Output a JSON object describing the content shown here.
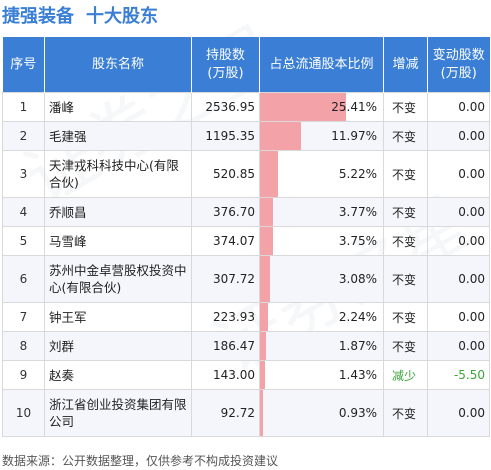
{
  "title": {
    "company": "捷强装备",
    "section": "十大股东"
  },
  "columns": [
    "序号",
    "股东名称",
    "持股数\n(万股)",
    "占总流通股本比例",
    "增减",
    "变动股数\n(万股)"
  ],
  "columns_display": {
    "idx": "序号",
    "name": "股东名称",
    "shares_l1": "持股数",
    "shares_l2": "(万股)",
    "ratio": "占总流通股本比例",
    "change": "增减",
    "delta_l1": "变动股数",
    "delta_l2": "(万股)"
  },
  "rows": [
    {
      "idx": "1",
      "name": "潘峰",
      "shares": "2536.95",
      "pct": "25.41%",
      "pct_value": 25.41,
      "change": "不变",
      "delta": "0.00"
    },
    {
      "idx": "2",
      "name": "毛建强",
      "shares": "1195.35",
      "pct": "11.97%",
      "pct_value": 11.97,
      "change": "不变",
      "delta": "0.00"
    },
    {
      "idx": "3",
      "name": "天津戎科科技中心(有限合伙)",
      "shares": "520.85",
      "pct": "5.22%",
      "pct_value": 5.22,
      "change": "不变",
      "delta": "0.00"
    },
    {
      "idx": "4",
      "name": "乔顺昌",
      "shares": "376.70",
      "pct": "3.77%",
      "pct_value": 3.77,
      "change": "不变",
      "delta": "0.00"
    },
    {
      "idx": "5",
      "name": "马雪峰",
      "shares": "374.07",
      "pct": "3.75%",
      "pct_value": 3.75,
      "change": "不变",
      "delta": "0.00"
    },
    {
      "idx": "6",
      "name": "苏州中金卓营股权投资中心(有限合伙)",
      "shares": "307.72",
      "pct": "3.08%",
      "pct_value": 3.08,
      "change": "不变",
      "delta": "0.00"
    },
    {
      "idx": "7",
      "name": "钟王军",
      "shares": "223.93",
      "pct": "2.24%",
      "pct_value": 2.24,
      "change": "不变",
      "delta": "0.00"
    },
    {
      "idx": "8",
      "name": "刘群",
      "shares": "186.47",
      "pct": "1.87%",
      "pct_value": 1.87,
      "change": "不变",
      "delta": "0.00"
    },
    {
      "idx": "9",
      "name": "赵奏",
      "shares": "143.00",
      "pct": "1.43%",
      "pct_value": 1.43,
      "change": "减少",
      "delta": "-5.50"
    },
    {
      "idx": "10",
      "name": "浙江省创业投资集团有限公司",
      "shares": "92.72",
      "pct": "0.93%",
      "pct_value": 0.93,
      "change": "不变",
      "delta": "0.00"
    }
  ],
  "footer": "数据来源：公开数据整理，仅供参考不构成投资建议",
  "colors": {
    "header_bg": "#3a7fd5",
    "title": "#3a7fd5",
    "bar": "#f3a3a7",
    "decrease": "#3aa53a"
  }
}
